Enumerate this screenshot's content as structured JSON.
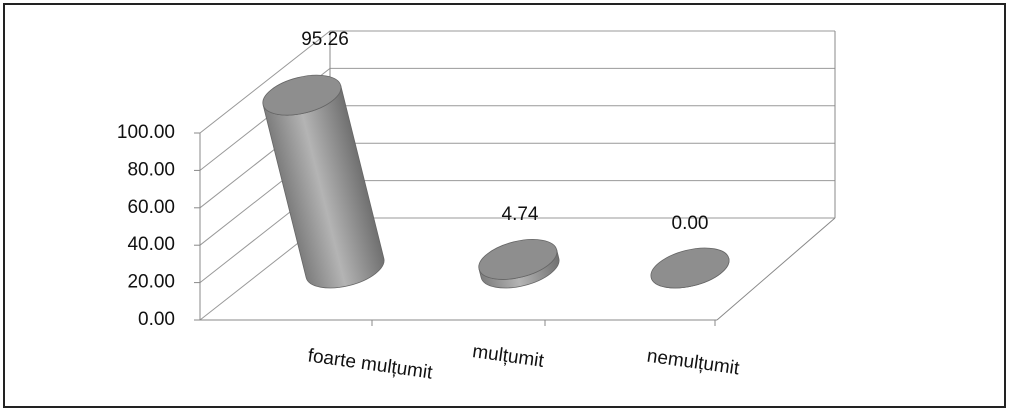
{
  "chart_data": {
    "type": "bar",
    "categories": [
      "foarte mulțumit",
      "mulțumit",
      "nemulțumit"
    ],
    "values": [
      95.26,
      4.74,
      0
    ],
    "value_labels": [
      "95.26",
      "4.74",
      "0.00"
    ],
    "color": "#9a9a9a",
    "ylim": [
      0,
      100
    ],
    "yticks": [
      {
        "value": 0,
        "label": "0.00"
      },
      {
        "value": 20,
        "label": "20.00"
      },
      {
        "value": 40,
        "label": "40.00"
      },
      {
        "value": 60,
        "label": "60.00"
      },
      {
        "value": 80,
        "label": "80.00"
      },
      {
        "value": 100,
        "label": "100.00"
      }
    ],
    "grid": true
  }
}
